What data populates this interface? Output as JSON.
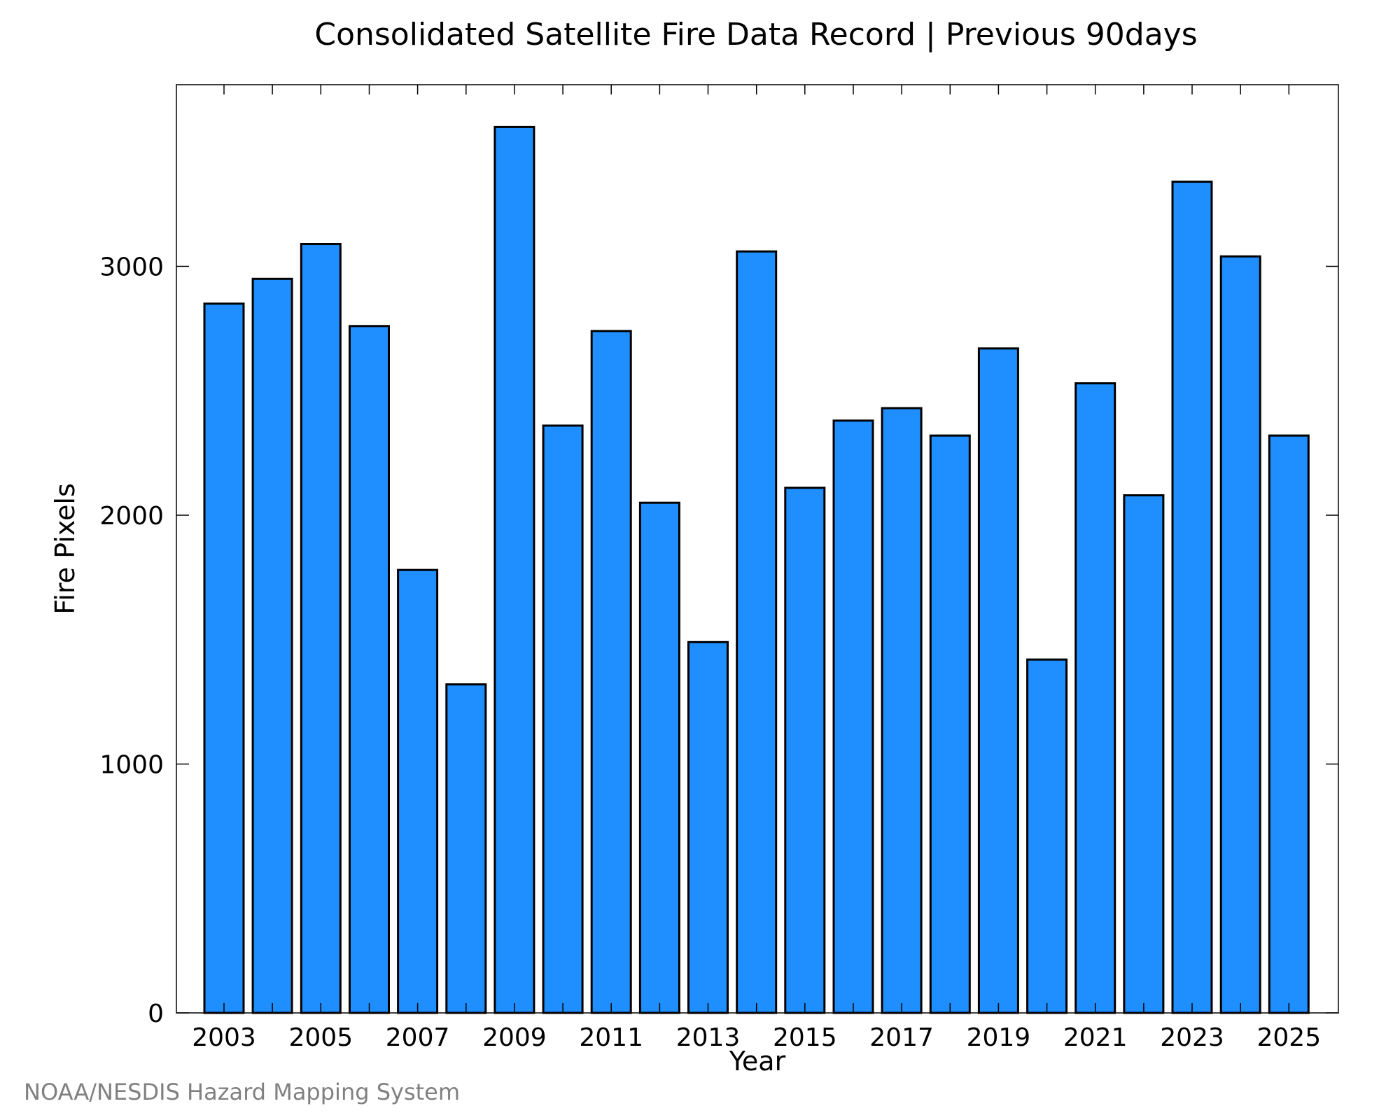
{
  "chart_data": {
    "type": "bar",
    "title": "Consolidated Satellite Fire Data Record | Previous 90days",
    "xlabel": "Year",
    "ylabel": "Fire Pixels",
    "categories": [
      "2003",
      "2004",
      "2005",
      "2006",
      "2007",
      "2008",
      "2009",
      "2010",
      "2011",
      "2012",
      "2013",
      "2014",
      "2015",
      "2016",
      "2017",
      "2018",
      "2019",
      "2020",
      "2021",
      "2022",
      "2023",
      "2024",
      "2025"
    ],
    "values": [
      2850,
      2950,
      3090,
      2760,
      1780,
      1320,
      3560,
      2360,
      2740,
      2050,
      1490,
      3060,
      2110,
      2380,
      2430,
      2320,
      2670,
      1420,
      2530,
      2080,
      3340,
      3040,
      2320
    ],
    "x_tick_labels": [
      "2003",
      "2005",
      "2007",
      "2009",
      "2011",
      "2013",
      "2015",
      "2017",
      "2019",
      "2021",
      "2023",
      "2025"
    ],
    "y_ticks": [
      0,
      1000,
      2000,
      3000
    ],
    "ylim": [
      0,
      3730
    ],
    "grid": false,
    "bar_color": "#1f8fff",
    "bar_edge_color": "#000000"
  },
  "credit": "NOAA/NESDIS Hazard Mapping System"
}
